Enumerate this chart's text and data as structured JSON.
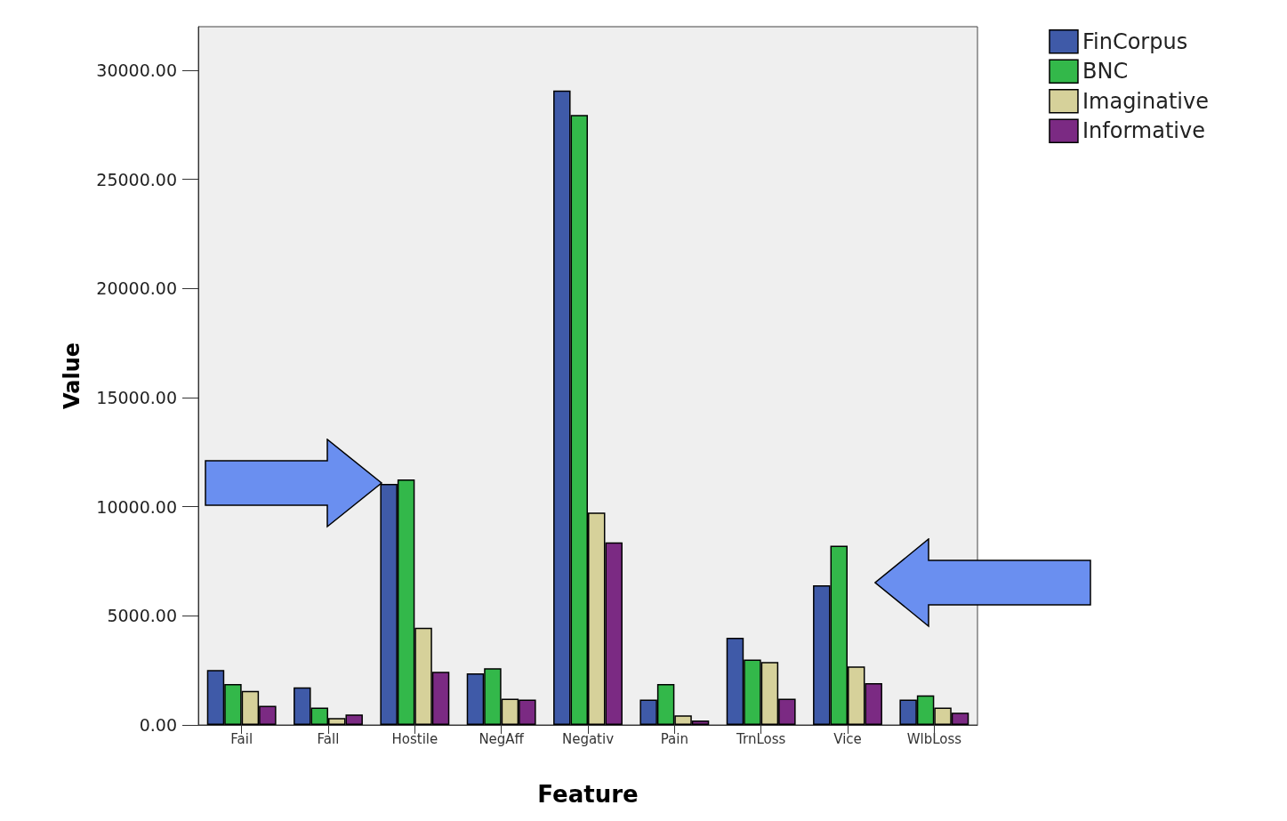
{
  "chart_data": {
    "type": "bar",
    "xlabel": "Feature",
    "ylabel": "Value",
    "categories": [
      "Fail",
      "Fall",
      "Hostile",
      "NegAff",
      "Negativ",
      "Pain",
      "TrnLoss",
      "Vice",
      "WlbLoss"
    ],
    "series": [
      {
        "name": "FinCorpus",
        "color": "#3f5aa8",
        "values": [
          2520,
          1720,
          11050,
          2360,
          29080,
          1160,
          4000,
          6400,
          1160
        ]
      },
      {
        "name": "BNC",
        "color": "#33b84a",
        "values": [
          1880,
          800,
          11250,
          2600,
          27950,
          1880,
          3000,
          8210,
          1360
        ]
      },
      {
        "name": "Imaginative",
        "color": "#d6d19a",
        "values": [
          1560,
          320,
          4450,
          1200,
          9730,
          440,
          2880,
          2680,
          800
        ]
      },
      {
        "name": "Informative",
        "color": "#7b2a83",
        "values": [
          880,
          480,
          2440,
          1160,
          8370,
          200,
          1200,
          1920,
          560
        ]
      }
    ],
    "ylim": [
      0,
      32000
    ],
    "yticks": [
      {
        "value": 0,
        "label": "0.00"
      },
      {
        "value": 5000,
        "label": "5000.00"
      },
      {
        "value": 10000,
        "label": "10000.00"
      },
      {
        "value": 15000,
        "label": "15000.00"
      },
      {
        "value": 20000,
        "label": "20000.00"
      },
      {
        "value": 25000,
        "label": "25000.00"
      },
      {
        "value": 30000,
        "label": "30000.00"
      }
    ],
    "grid": false,
    "legend": "top right"
  }
}
